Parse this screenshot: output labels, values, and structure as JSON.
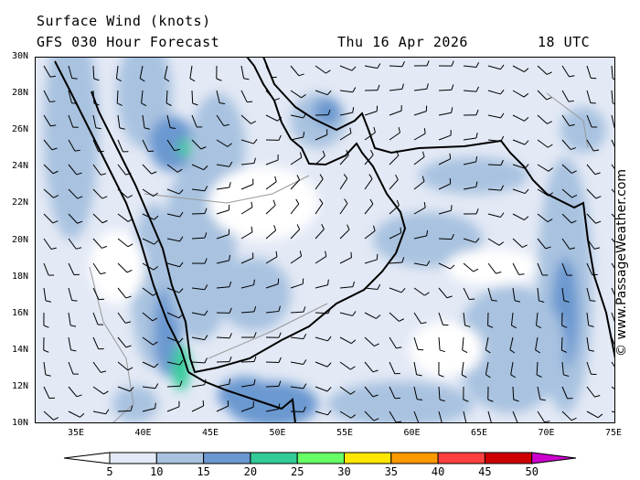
{
  "header": {
    "title": "Surface Wind (knots)",
    "subtitle": "GFS 030 Hour Forecast",
    "date": "Thu 16 Apr 2026",
    "time": "18 UTC"
  },
  "credit": "© www.PassageWeather.com",
  "map": {
    "lat_labels": [
      "30N",
      "28N",
      "26N",
      "24N",
      "22N",
      "20N",
      "18N",
      "16N",
      "14N",
      "12N",
      "10N"
    ],
    "lon_labels": [
      "35E",
      "40E",
      "45E",
      "50E",
      "55E",
      "60E",
      "65E",
      "70E",
      "75E"
    ],
    "lat_range": [
      10,
      30
    ],
    "lon_range": [
      32.3,
      75
    ]
  },
  "colorbar": {
    "labels": [
      "5",
      "10",
      "15",
      "20",
      "25",
      "30",
      "35",
      "40",
      "45",
      "50"
    ],
    "colors": [
      "#e3e9f5",
      "#a8c2e0",
      "#6b98d0",
      "#33cc99",
      "#66ff66",
      "#ffe600",
      "#ff9900",
      "#ff4040",
      "#cc0000"
    ],
    "over_color": "#cc00cc",
    "under_color": "#ffffff"
  }
}
